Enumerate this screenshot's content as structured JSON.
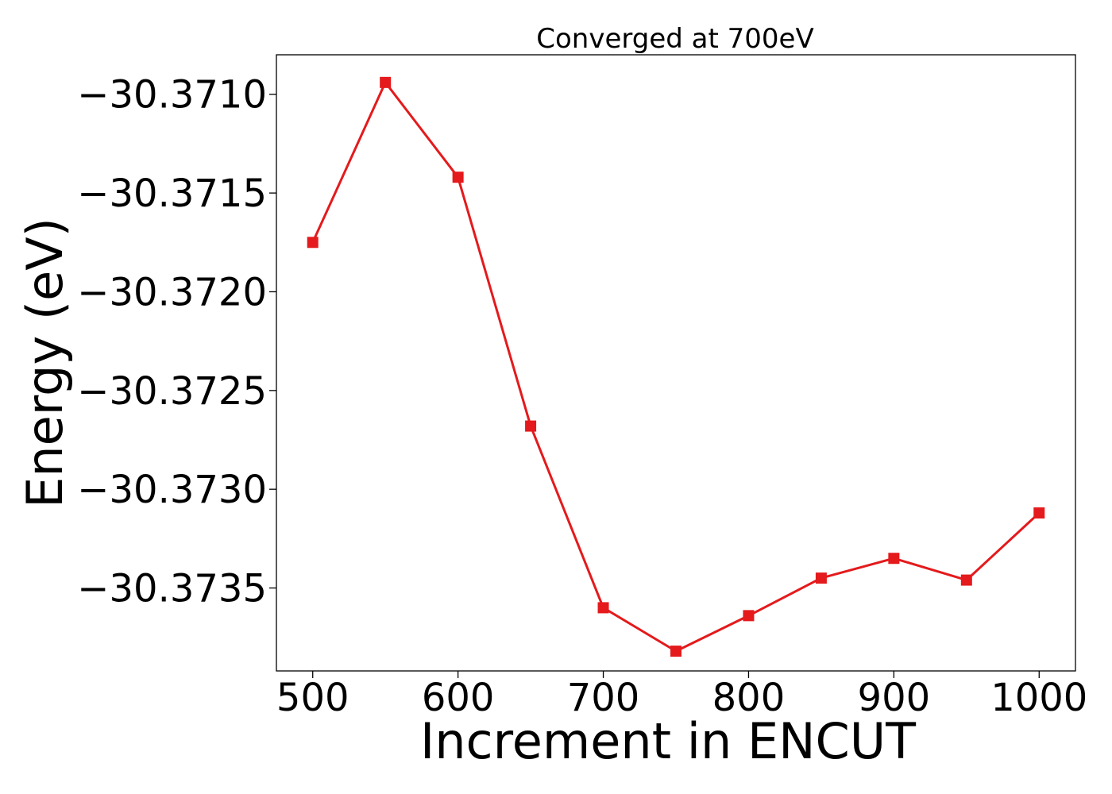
{
  "chart_data": {
    "type": "line",
    "title": "Converged at 700eV",
    "xlabel": "Increment in ENCUT",
    "ylabel": "Energy (eV)",
    "x": [
      500,
      550,
      600,
      650,
      700,
      750,
      800,
      850,
      900,
      950,
      1000
    ],
    "series": [
      {
        "values": [
          -30.37175,
          -30.37094,
          -30.37142,
          -30.37268,
          -30.3736,
          -30.37382,
          -30.37364,
          -30.37345,
          -30.37335,
          -30.37346,
          -30.37312
        ],
        "color": "#e41a1c",
        "marker": "square"
      }
    ],
    "xlim": [
      475,
      1025
    ],
    "ylim": [
      -30.37392,
      -30.3708
    ],
    "xticks": [
      500,
      600,
      700,
      800,
      900,
      1000
    ],
    "xtick_labels": [
      "500",
      "600",
      "700",
      "800",
      "900",
      "1000"
    ],
    "yticks": [
      -30.371,
      -30.3715,
      -30.372,
      -30.3725,
      -30.373,
      -30.3735
    ],
    "ytick_labels": [
      "−30.3710",
      "−30.3715",
      "−30.3720",
      "−30.3725",
      "−30.3730",
      "−30.3735"
    ],
    "grid": false,
    "legend": "none"
  }
}
